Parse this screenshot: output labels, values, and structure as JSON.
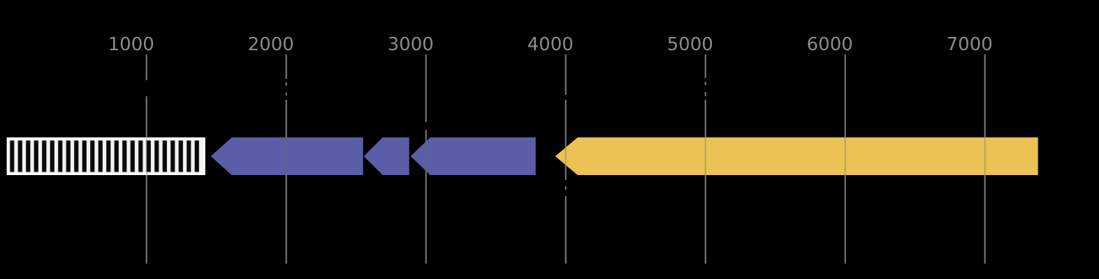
{
  "figure": {
    "description": "Genome sequence feature map on black background: one hatched (striped) region, three purple left-pointing gene arrows, one gold left-pointing gene arrow, drawn over a gray position ruler with vertical gridlines",
    "background_color": "#000000"
  },
  "chart_data": {
    "type": "gene-map",
    "title": "",
    "axis": {
      "orientation": "horizontal",
      "tick_values": [
        1000,
        2000,
        3000,
        4000,
        5000,
        6000,
        7000
      ],
      "tick_labels": [
        "1000",
        "2000",
        "3000",
        "4000",
        "5000",
        "6000",
        "7000"
      ],
      "visible_range": [
        0,
        7820
      ],
      "unit": "sequence position",
      "gridlines": "vertical gray lines behind features, faintly visible through feature bodies",
      "tick_label_color": "#8a8a8a",
      "gridline_color": "#7d7d7d"
    },
    "features": [
      {
        "id": "hatched-region",
        "start": 0,
        "end": 1420,
        "direction": "none",
        "shape": "striped-box",
        "fill": "#f2f2f2",
        "stripe_color": "#0b0b0b",
        "border_color": "#ffffff"
      },
      {
        "id": "purple-arrow-1",
        "start": 1460,
        "end": 2550,
        "direction": "left",
        "shape": "arrow",
        "fill": "#5b5ea6"
      },
      {
        "id": "purple-arrow-2",
        "start": 2555,
        "end": 2880,
        "direction": "left",
        "shape": "arrow",
        "fill": "#5b5ea6"
      },
      {
        "id": "purple-arrow-3",
        "start": 2890,
        "end": 3785,
        "direction": "left",
        "shape": "arrow",
        "fill": "#5b5ea6"
      },
      {
        "id": "gold-arrow",
        "start": 3925,
        "end": 7380,
        "direction": "left",
        "shape": "arrow",
        "fill": "#ecc255"
      }
    ]
  }
}
